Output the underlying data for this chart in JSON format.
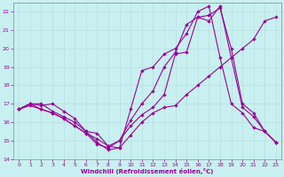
{
  "xlabel": "Windchill (Refroidissement éolien,°C)",
  "bg_color": "#c8f0f0",
  "line_color": "#990099",
  "grid_color": "#b8e0e0",
  "xlim_min": -0.5,
  "xlim_max": 23.5,
  "ylim_min": 14,
  "ylim_max": 22.5,
  "xticks": [
    0,
    1,
    2,
    3,
    4,
    5,
    6,
    7,
    8,
    9,
    10,
    11,
    12,
    13,
    14,
    15,
    16,
    17,
    18,
    19,
    20,
    21,
    22,
    23
  ],
  "yticks": [
    14,
    15,
    16,
    17,
    18,
    19,
    20,
    21,
    22
  ],
  "lines": [
    {
      "x": [
        0,
        1,
        2,
        3,
        4,
        5,
        6,
        7,
        8,
        9,
        10,
        11,
        12,
        13,
        14,
        15,
        16,
        17,
        18,
        19,
        20,
        21,
        22,
        23
      ],
      "y": [
        16.7,
        17.0,
        16.7,
        16.5,
        16.2,
        15.8,
        15.4,
        15.1,
        14.7,
        14.6,
        15.3,
        16.0,
        16.5,
        16.8,
        16.9,
        17.5,
        18.0,
        18.5,
        19.0,
        19.5,
        20.0,
        20.5,
        21.5,
        21.7
      ]
    },
    {
      "x": [
        0,
        1,
        2,
        3,
        4,
        5,
        6,
        7,
        8,
        9,
        10,
        11,
        12,
        13,
        14,
        15,
        16,
        17,
        18,
        19,
        20,
        21,
        22,
        23
      ],
      "y": [
        16.7,
        17.0,
        17.0,
        16.6,
        16.3,
        16.0,
        15.5,
        15.4,
        14.7,
        15.0,
        15.8,
        16.4,
        16.8,
        17.5,
        19.7,
        19.8,
        21.7,
        21.5,
        22.3,
        19.5,
        16.8,
        16.3,
        15.5,
        14.9
      ]
    },
    {
      "x": [
        0,
        1,
        2,
        3,
        4,
        5,
        6,
        7,
        8,
        9,
        10,
        11,
        12,
        13,
        14,
        15,
        16,
        17,
        18,
        19,
        20,
        21,
        22,
        23
      ],
      "y": [
        16.7,
        17.0,
        16.9,
        17.0,
        16.6,
        16.2,
        15.5,
        14.9,
        14.5,
        14.6,
        16.7,
        18.8,
        19.0,
        19.7,
        20.0,
        20.8,
        22.0,
        22.3,
        19.5,
        17.0,
        16.5,
        15.7,
        15.5,
        14.9
      ]
    },
    {
      "x": [
        0,
        1,
        2,
        3,
        4,
        5,
        6,
        7,
        8,
        9,
        10,
        11,
        12,
        13,
        14,
        15,
        16,
        17,
        18,
        19,
        20,
        21,
        22,
        23
      ],
      "y": [
        16.7,
        16.9,
        16.7,
        16.5,
        16.2,
        15.8,
        15.4,
        14.8,
        14.6,
        15.0,
        16.1,
        17.0,
        17.7,
        19.0,
        19.8,
        21.3,
        21.7,
        21.8,
        22.2,
        20.0,
        17.0,
        16.5,
        15.5,
        14.9
      ]
    }
  ]
}
